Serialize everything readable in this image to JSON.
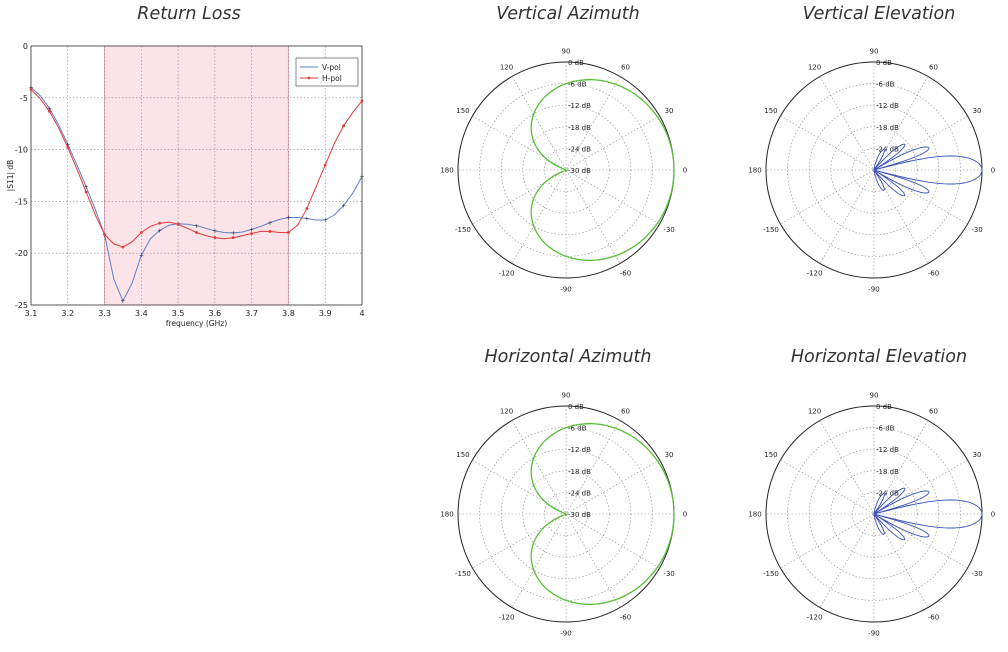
{
  "titles": {
    "return_loss": "Return Loss",
    "vertical_azimuth": "Vertical Azimuth",
    "vertical_elevation": "Vertical Elevation",
    "horizontal_azimuth": "Horizontal Azimuth",
    "horizontal_elevation": "Horizontal Elevation"
  },
  "chart_data": [
    {
      "id": "return_loss",
      "type": "line",
      "title": "Return Loss",
      "xlabel": "frequency (GHz)",
      "ylabel": "|S11| dB",
      "xlim": [
        3.1,
        4.0
      ],
      "ylim": [
        -25,
        0
      ],
      "x_ticks": [
        "3.1",
        "3.2",
        "3.3",
        "3.4",
        "3.5",
        "3.6",
        "3.7",
        "3.8",
        "3.9",
        "4"
      ],
      "y_ticks": [
        "0",
        "-5",
        "-10",
        "-15",
        "-20",
        "-25"
      ],
      "grid": true,
      "legend_position": "top-right",
      "highlight_band": [
        3.3,
        3.8
      ],
      "colors": {
        "v_pol": "#5b7fc9",
        "h_pol": "#e23a3a",
        "band": "#fbe3e8",
        "band_edge": "#e9a3b1"
      },
      "series": [
        {
          "name": "V-pol",
          "x": [
            3.1,
            3.125,
            3.15,
            3.175,
            3.2,
            3.225,
            3.25,
            3.275,
            3.3,
            3.325,
            3.35,
            3.375,
            3.4,
            3.425,
            3.45,
            3.475,
            3.5,
            3.525,
            3.55,
            3.575,
            3.6,
            3.625,
            3.65,
            3.675,
            3.7,
            3.725,
            3.75,
            3.775,
            3.8,
            3.825,
            3.85,
            3.875,
            3.9,
            3.925,
            3.95,
            3.975,
            4.0
          ],
          "y": [
            -4.0,
            -4.8,
            -6.0,
            -7.6,
            -9.5,
            -11.5,
            -13.6,
            -15.8,
            -18.2,
            -22.5,
            -24.6,
            -22.9,
            -20.2,
            -18.6,
            -17.8,
            -17.3,
            -17.15,
            -17.2,
            -17.35,
            -17.6,
            -17.85,
            -18.0,
            -18.05,
            -17.95,
            -17.7,
            -17.4,
            -17.05,
            -16.75,
            -16.55,
            -16.55,
            -16.65,
            -16.8,
            -16.8,
            -16.3,
            -15.4,
            -14.2,
            -12.6
          ]
        },
        {
          "name": "H-pol",
          "x": [
            3.1,
            3.125,
            3.15,
            3.175,
            3.2,
            3.225,
            3.25,
            3.275,
            3.3,
            3.325,
            3.35,
            3.375,
            3.4,
            3.425,
            3.45,
            3.475,
            3.5,
            3.525,
            3.55,
            3.575,
            3.6,
            3.625,
            3.65,
            3.675,
            3.7,
            3.725,
            3.75,
            3.775,
            3.8,
            3.825,
            3.85,
            3.875,
            3.9,
            3.925,
            3.95,
            3.975,
            4.0
          ],
          "y": [
            -4.2,
            -5.1,
            -6.3,
            -7.9,
            -9.8,
            -11.9,
            -14.1,
            -16.3,
            -18.2,
            -19.1,
            -19.4,
            -18.9,
            -18.0,
            -17.4,
            -17.1,
            -17.0,
            -17.2,
            -17.6,
            -18.0,
            -18.3,
            -18.5,
            -18.6,
            -18.5,
            -18.3,
            -18.1,
            -17.9,
            -17.9,
            -18.0,
            -18.0,
            -17.3,
            -15.7,
            -13.6,
            -11.5,
            -9.4,
            -7.7,
            -6.4,
            -5.3
          ]
        }
      ]
    },
    {
      "id": "vertical_azimuth",
      "type": "polar",
      "title": "Vertical Azimuth",
      "pattern": "cardioid",
      "peak_direction_deg": 0,
      "null_depth_db": -30,
      "color": "#55c035",
      "r_ticks": [
        "0 dB",
        "-6 dB",
        "-12 dB",
        "-18 dB",
        "-24 dB",
        "-30 dB"
      ],
      "angle_ticks": [
        "0",
        "30",
        "60",
        "90",
        "120",
        "150",
        "180",
        "-150",
        "-120",
        "-90",
        "-60",
        "-30"
      ]
    },
    {
      "id": "vertical_elevation",
      "type": "polar",
      "title": "Vertical Elevation",
      "pattern": "narrow_main_lobe_with_sidelobes",
      "peak_direction_deg": 0,
      "color": "#3653b8",
      "r_ticks": [
        "0 dB",
        "-6 dB",
        "-12 dB",
        "-18 dB",
        "-24 dB"
      ],
      "angle_ticks": [
        "0",
        "30",
        "60",
        "90",
        "120",
        "150",
        "180",
        "-150",
        "-120",
        "-90",
        "-60",
        "-30"
      ]
    },
    {
      "id": "horizontal_azimuth",
      "type": "polar",
      "title": "Horizontal Azimuth",
      "pattern": "cardioid",
      "peak_direction_deg": 0,
      "null_depth_db": -30,
      "color": "#55c035",
      "r_ticks": [
        "0 dB",
        "-6 dB",
        "-12 dB",
        "-18 dB",
        "-24 dB",
        "-30 dB"
      ],
      "angle_ticks": [
        "0",
        "30",
        "60",
        "90",
        "120",
        "150",
        "180",
        "-150",
        "-120",
        "-90",
        "-60",
        "-30"
      ]
    },
    {
      "id": "horizontal_elevation",
      "type": "polar",
      "title": "Horizontal Elevation",
      "pattern": "narrow_main_lobe_with_sidelobes",
      "peak_direction_deg": 0,
      "color": "#3653b8",
      "r_ticks": [
        "0 dB",
        "-6 dB",
        "-12 dB",
        "-18 dB",
        "-24 dB"
      ],
      "angle_ticks": [
        "0",
        "30",
        "60",
        "90",
        "120",
        "150",
        "180",
        "-150",
        "-120",
        "-90",
        "-60",
        "-30"
      ]
    }
  ]
}
